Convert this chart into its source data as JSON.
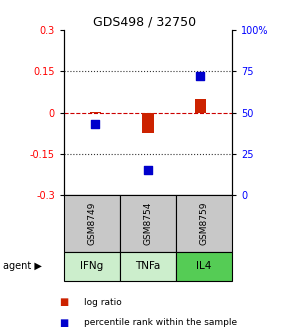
{
  "title": "GDS498 / 32750",
  "samples": [
    "GSM8749",
    "GSM8754",
    "GSM8759"
  ],
  "agents": [
    "IFNg",
    "TNFa",
    "IL4"
  ],
  "log_ratios": [
    0.002,
    -0.075,
    0.048
  ],
  "percentile_ranks": [
    43,
    15,
    72
  ],
  "ylim_left": [
    -0.3,
    0.3
  ],
  "ylim_right": [
    0,
    100
  ],
  "yticks_left": [
    -0.3,
    -0.15,
    0,
    0.15,
    0.3
  ],
  "yticks_right": [
    0,
    25,
    50,
    75,
    100
  ],
  "ytick_labels_right": [
    "0",
    "25",
    "50",
    "75",
    "100%"
  ],
  "bar_color": "#cc2200",
  "dot_color": "#0000cc",
  "agent_colors": [
    "#cceecc",
    "#cceecc",
    "#55cc55"
  ],
  "sample_box_color": "#c8c8c8",
  "hline_color": "#cc0000",
  "dotted_color": "#333333",
  "fig_bg": "#ffffff"
}
